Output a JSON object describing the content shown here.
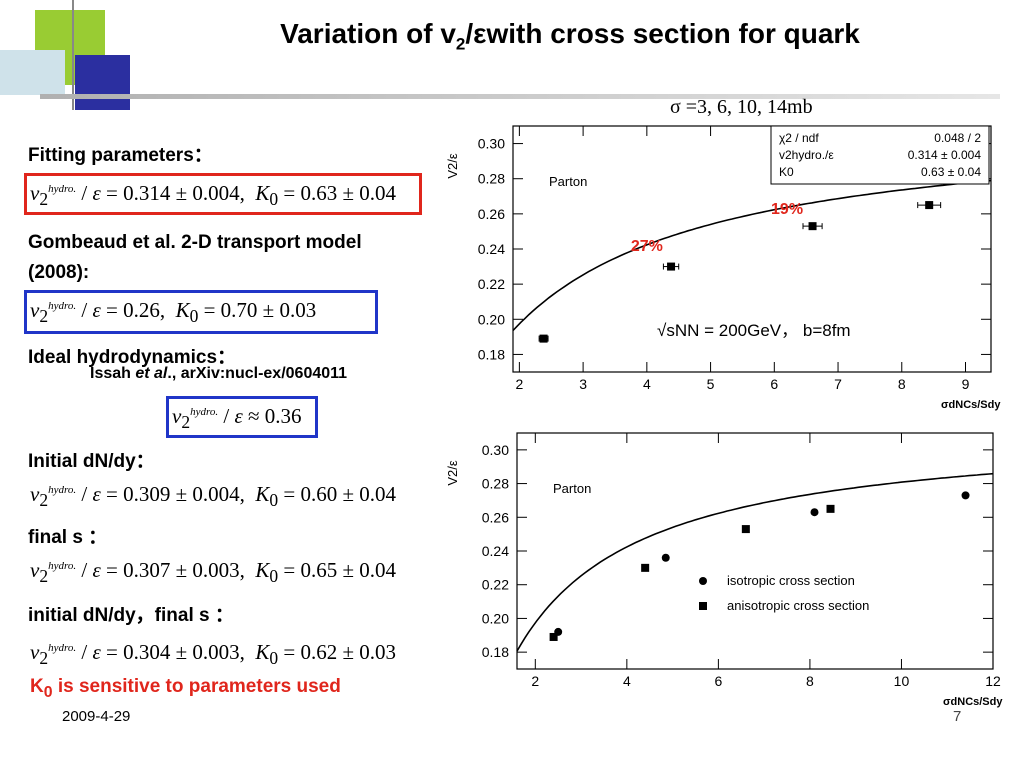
{
  "title": {
    "pre": "Variation of  v",
    "sub": "2",
    "post": "/εwith cross section for quark"
  },
  "sigma_note": "σ =3, 6, 10, 14mb",
  "left": {
    "fitting_label": "Fitting parameters：",
    "fit_formula": {
      "value": "0.314 ± 0.004",
      "k0": "0.63 ± 0.04"
    },
    "gombeaud_label": "Gombeaud et al. 2-D transport model (2008):",
    "gombeaud_formula": {
      "value": "0.26",
      "k0": "0.70 ± 0.03"
    },
    "ideal_label": "Ideal hydrodynamics：",
    "issah_pre": "Issah ",
    "issah_etal": "et al",
    "issah_post": "., arXiv:nucl-ex/0604011",
    "ideal_formula": {
      "value": "≈ 0.36"
    },
    "initial_label": "Initial dN/dy：",
    "initial_formula": {
      "value": "0.309 ± 0.004",
      "k0": "0.60 ± 0.04"
    },
    "final_label": "final s ：",
    "final_formula": {
      "value": "0.307 ± 0.003",
      "k0": "0.65 ± 0.04"
    },
    "both_label": "initial dN/dy，final s ：",
    "both_formula": {
      "value": "0.304 ± 0.003",
      "k0": "0.62 ± 0.03"
    },
    "sensitive_pre": "K",
    "sensitive_sub": "0",
    "sensitive_post": " is sensitive to parameters used"
  },
  "footer": {
    "date": "2009-4-29",
    "page": "7"
  },
  "colors": {
    "red_box": "#e0261c",
    "blue_box": "#2035c8",
    "annotation_red": "#e0261c"
  },
  "chart_data": [
    {
      "type": "scatter",
      "ylabel": "V2/ε",
      "xlabel": "σdNCs/Sdy",
      "xlim": [
        1.9,
        9.4
      ],
      "ylim": [
        0.17,
        0.31
      ],
      "xticks": [
        2,
        3,
        4,
        5,
        6,
        7,
        8,
        9
      ],
      "yticks": [
        0.18,
        0.2,
        0.22,
        0.24,
        0.26,
        0.28,
        0.3
      ],
      "legend_text": "Parton",
      "fit_box": [
        [
          "χ2 / ndf",
          "0.048 / 2"
        ],
        [
          "v2hydro./ε",
          "0.314  ± 0.004"
        ],
        [
          "K0",
          "0.63   ±   0.04"
        ]
      ],
      "annotation": "√sNN = 200GeV， b=8fm",
      "percent_labels": [
        {
          "text": "27%",
          "x": 4.0,
          "y": 0.239
        },
        {
          "text": "19%",
          "x": 6.2,
          "y": 0.26
        }
      ],
      "points": [
        {
          "x": 2.38,
          "y": 0.189,
          "xerr": 0.07
        },
        {
          "x": 4.38,
          "y": 0.23,
          "xerr": 0.12
        },
        {
          "x": 6.6,
          "y": 0.253,
          "xerr": 0.15
        },
        {
          "x": 8.43,
          "y": 0.265,
          "xerr": 0.18
        }
      ],
      "fit_curve": {
        "v": 0.314,
        "k0": 0.63,
        "x_scale": 1.875
      }
    },
    {
      "type": "scatter",
      "ylabel": "V2/ε",
      "xlabel": "σdNCs/Sdy",
      "xlim": [
        1.6,
        12.0
      ],
      "ylim": [
        0.17,
        0.31
      ],
      "xticks": [
        2,
        4,
        6,
        8,
        10,
        12
      ],
      "yticks": [
        0.18,
        0.2,
        0.22,
        0.24,
        0.26,
        0.28,
        0.3
      ],
      "legend_text": "Parton",
      "series": [
        {
          "name": "isotropic cross section",
          "marker": "circle",
          "points": [
            {
              "x": 2.5,
              "y": 0.192
            },
            {
              "x": 4.85,
              "y": 0.236
            },
            {
              "x": 8.1,
              "y": 0.263
            },
            {
              "x": 11.4,
              "y": 0.273
            }
          ]
        },
        {
          "name": "anisotropic cross section",
          "marker": "square",
          "points": [
            {
              "x": 2.4,
              "y": 0.189
            },
            {
              "x": 4.4,
              "y": 0.23
            },
            {
              "x": 6.6,
              "y": 0.253
            },
            {
              "x": 8.45,
              "y": 0.265
            }
          ]
        }
      ],
      "fit_curve": {
        "v": 0.314,
        "k0": 0.63,
        "x_scale": 1.875
      }
    }
  ]
}
